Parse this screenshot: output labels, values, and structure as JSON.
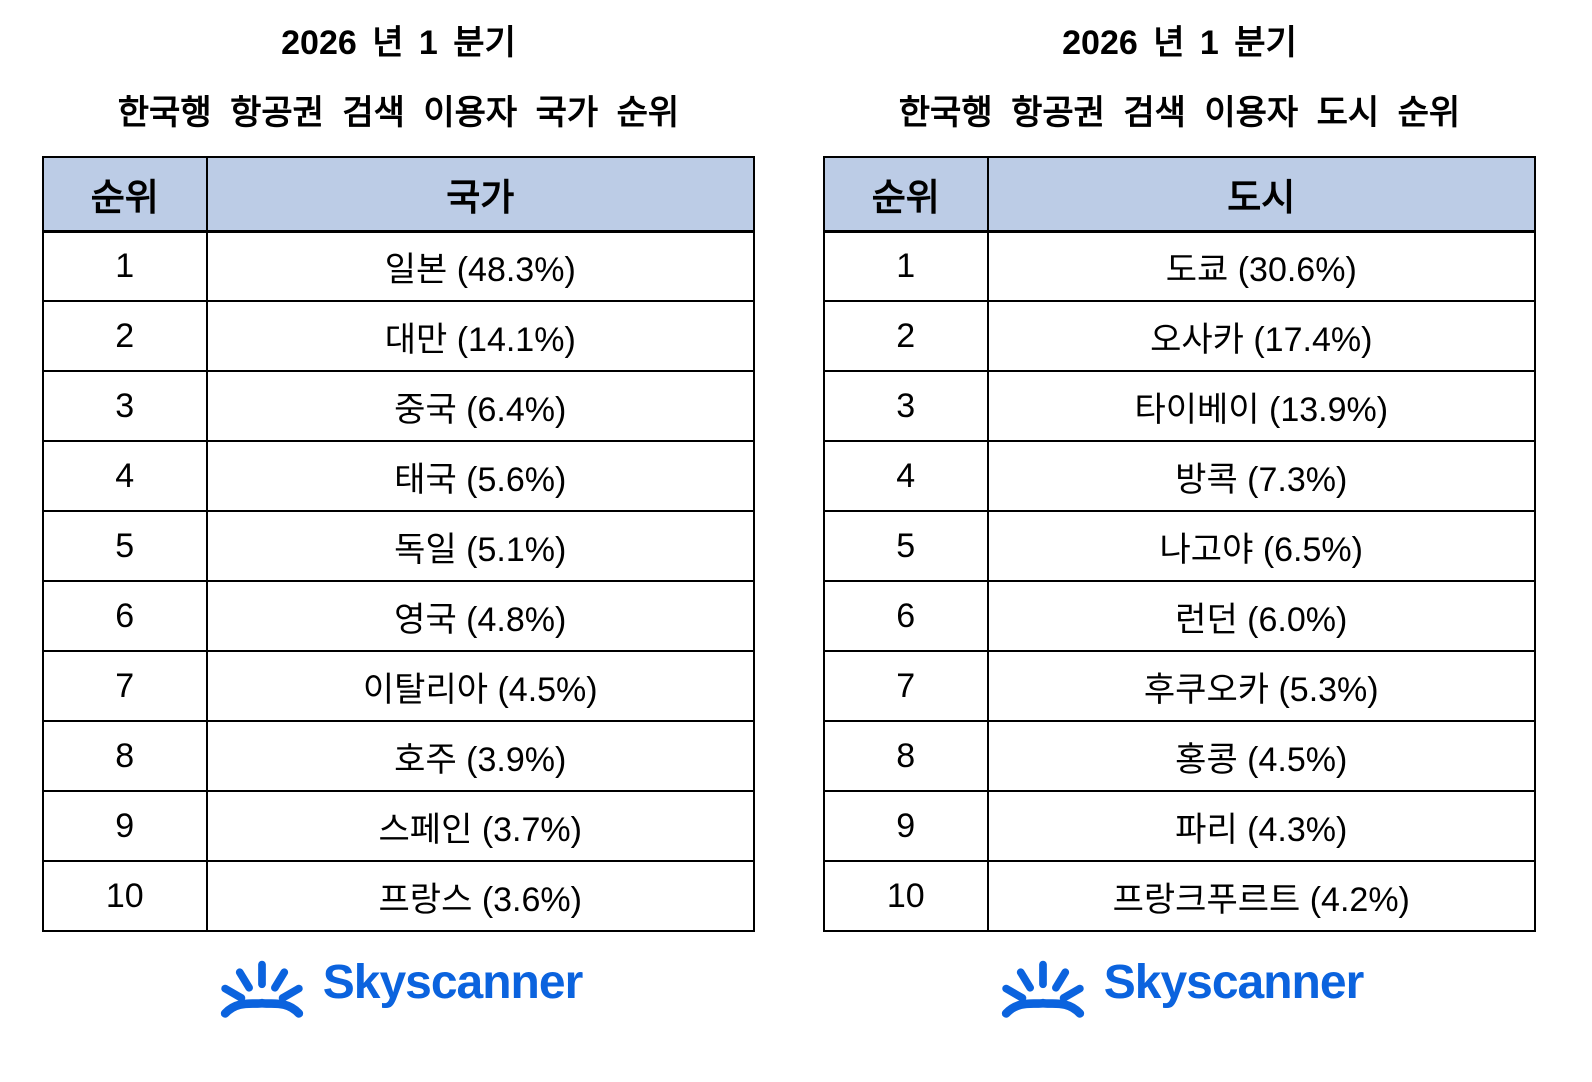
{
  "colors": {
    "header_bg": "#bccce6",
    "table_border": "#000000",
    "brand_blue": "#0b63de",
    "text": "#000000"
  },
  "tables": [
    {
      "title_line1": "2026 년 1 분기",
      "title_line2": "한국행 항공권 검색 이용자 국가 순위",
      "rank_header": "순위",
      "value_header": "국가",
      "rows": [
        {
          "rank": "1",
          "value": "일본 (48.3%)"
        },
        {
          "rank": "2",
          "value": "대만 (14.1%)"
        },
        {
          "rank": "3",
          "value": "중국 (6.4%)"
        },
        {
          "rank": "4",
          "value": "태국 (5.6%)"
        },
        {
          "rank": "5",
          "value": "독일 (5.1%)"
        },
        {
          "rank": "6",
          "value": "영국 (4.8%)"
        },
        {
          "rank": "7",
          "value": "이탈리아 (4.5%)"
        },
        {
          "rank": "8",
          "value": "호주 (3.9%)"
        },
        {
          "rank": "9",
          "value": "스페인 (3.7%)"
        },
        {
          "rank": "10",
          "value": "프랑스 (3.6%)"
        }
      ],
      "logo_text": "Skyscanner"
    },
    {
      "title_line1": "2026 년 1 분기",
      "title_line2": "한국행 항공권 검색 이용자 도시 순위",
      "rank_header": "순위",
      "value_header": "도시",
      "rows": [
        {
          "rank": "1",
          "value": "도쿄 (30.6%)"
        },
        {
          "rank": "2",
          "value": "오사카 (17.4%)"
        },
        {
          "rank": "3",
          "value": "타이베이 (13.9%)"
        },
        {
          "rank": "4",
          "value": "방콕 (7.3%)"
        },
        {
          "rank": "5",
          "value": "나고야 (6.5%)"
        },
        {
          "rank": "6",
          "value": "런던 (6.0%)"
        },
        {
          "rank": "7",
          "value": "후쿠오카 (5.3%)"
        },
        {
          "rank": "8",
          "value": "홍콩 (4.5%)"
        },
        {
          "rank": "9",
          "value": "파리 (4.3%)"
        },
        {
          "rank": "10",
          "value": "프랑크푸르트 (4.2%)"
        }
      ],
      "logo_text": "Skyscanner"
    }
  ],
  "chart_data": [
    {
      "type": "table",
      "title": "2026 년 1 분기 한국행 항공권 검색 이용자 국가 순위",
      "columns": [
        "순위",
        "국가"
      ],
      "categories": [
        "일본",
        "대만",
        "중국",
        "태국",
        "독일",
        "영국",
        "이탈리아",
        "호주",
        "스페인",
        "프랑스"
      ],
      "values": [
        48.3,
        14.1,
        6.4,
        5.6,
        5.1,
        4.8,
        4.5,
        3.9,
        3.7,
        3.6
      ],
      "unit": "%"
    },
    {
      "type": "table",
      "title": "2026 년 1 분기 한국행 항공권 검색 이용자 도시 순위",
      "columns": [
        "순위",
        "도시"
      ],
      "categories": [
        "도쿄",
        "오사카",
        "타이베이",
        "방콕",
        "나고야",
        "런던",
        "후쿠오카",
        "홍콩",
        "파리",
        "프랑크푸르트"
      ],
      "values": [
        30.6,
        17.4,
        13.9,
        7.3,
        6.5,
        6.0,
        5.3,
        4.5,
        4.3,
        4.2
      ],
      "unit": "%"
    }
  ]
}
